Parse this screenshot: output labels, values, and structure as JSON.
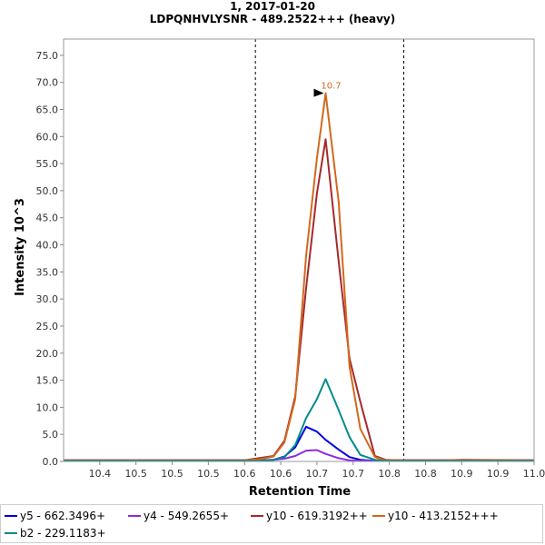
{
  "chart_data": {
    "type": "line",
    "title": "1, 2017-01-20",
    "subtitle": "LDPQNHVLYSNR - 489.2522+++ (heavy)",
    "xlabel": "Retention Time",
    "ylabel": "Intensity 10^3",
    "xlim": [
      10.35,
      11.0
    ],
    "ylim": [
      0,
      78
    ],
    "x_tick_values": [
      10.4,
      10.45,
      10.5,
      10.55,
      10.6,
      10.65,
      10.7,
      10.75,
      10.8,
      10.85,
      10.9,
      10.95,
      11.0
    ],
    "x_tick_labels": [
      "10.4",
      "10.5",
      "10.5",
      "10.5",
      "10.6",
      "10.6",
      "10.7",
      "10.7",
      "10.8",
      "10.8",
      "10.9",
      "10.9",
      "11.0"
    ],
    "y_ticks": [
      0.0,
      5.0,
      10.0,
      15.0,
      20.0,
      25.0,
      30.0,
      35.0,
      40.0,
      45.0,
      50.0,
      55.0,
      60.0,
      65.0,
      70.0,
      75.0
    ],
    "y_tick_labels": [
      "0.0",
      "5.0",
      "10.0",
      "15.0",
      "20.0",
      "25.0",
      "30.0",
      "35.0",
      "40.0",
      "45.0",
      "50.0",
      "55.0",
      "60.0",
      "65.0",
      "70.0",
      "75.0"
    ],
    "grid": false,
    "boundaries": [
      10.615,
      10.82
    ],
    "peak_annotation": {
      "label": "10.7",
      "x": 10.712,
      "y": 68.0
    },
    "legend_position": "bottom",
    "x": [
      10.35,
      10.6,
      10.62,
      10.64,
      10.655,
      10.67,
      10.685,
      10.7,
      10.712,
      10.73,
      10.745,
      10.76,
      10.78,
      10.795,
      10.81,
      10.83,
      10.88,
      10.9,
      11.0
    ],
    "series": [
      {
        "name": "y5 - 662.3496+",
        "color": "#0000dd",
        "values": [
          0.2,
          0.2,
          0.2,
          0.3,
          0.9,
          2.6,
          6.4,
          5.5,
          4.0,
          2.2,
          0.8,
          0.3,
          0.1,
          0.2,
          0.2,
          0.2,
          0.2,
          0.2,
          0.2
        ]
      },
      {
        "name": "y4 - 549.2655+",
        "color": "#8a2be2",
        "values": [
          0.2,
          0.2,
          0.2,
          0.3,
          0.5,
          1.0,
          2.0,
          2.1,
          1.4,
          0.6,
          0.2,
          0.1,
          0.1,
          0.2,
          0.2,
          0.2,
          0.2,
          0.2,
          0.2
        ]
      },
      {
        "name": "y10 - 619.3192++",
        "color": "#a52a2a",
        "values": [
          0.2,
          0.2,
          0.6,
          1.0,
          3.8,
          12.0,
          32.0,
          49.5,
          59.5,
          37.0,
          19.0,
          11.0,
          1.0,
          0.3,
          0.2,
          0.2,
          0.2,
          0.3,
          0.2
        ]
      },
      {
        "name": "y10 - 413.2152+++",
        "color": "#d2691e",
        "values": [
          0.2,
          0.2,
          0.4,
          0.9,
          3.5,
          11.5,
          38.0,
          56.0,
          68.0,
          48.0,
          17.5,
          6.0,
          0.8,
          0.2,
          0.2,
          0.2,
          0.2,
          0.2,
          0.2
        ]
      },
      {
        "name": "b2 - 229.1183+",
        "color": "#008b8b",
        "values": [
          0.1,
          0.1,
          0.1,
          0.3,
          0.8,
          3.0,
          8.0,
          11.5,
          15.2,
          9.5,
          4.5,
          1.2,
          0.3,
          0.1,
          0.1,
          0.1,
          0.1,
          0.1,
          0.1
        ]
      }
    ]
  }
}
